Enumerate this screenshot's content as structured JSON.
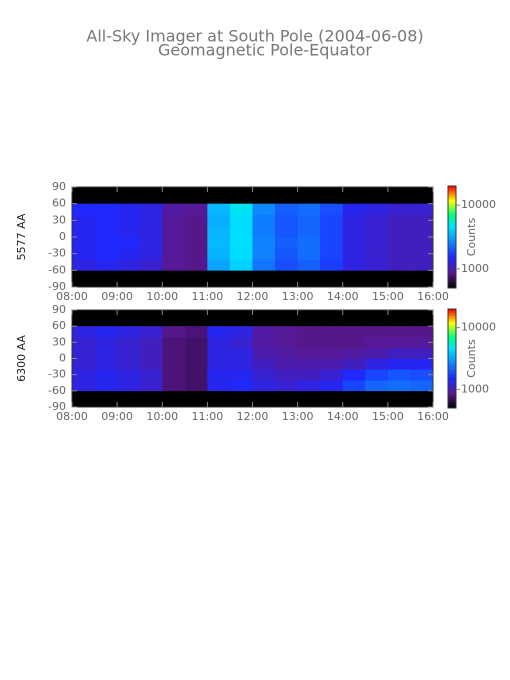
{
  "title": "All-Sky Imager at South Pole (2004-06-08)",
  "subtitle": "Geomagnetic Pole-Equator",
  "chart_data": [
    {
      "type": "heatmap",
      "ylabel": "5577 AA",
      "xlim": [
        8,
        16
      ],
      "xticks": [
        {
          "value": 8,
          "label": "08:00"
        },
        {
          "value": 9,
          "label": "09:00"
        },
        {
          "value": 10,
          "label": "10:00"
        },
        {
          "value": 11,
          "label": "11:00"
        },
        {
          "value": 12,
          "label": "12:00"
        },
        {
          "value": 13,
          "label": "13:00"
        },
        {
          "value": 14,
          "label": "14:00"
        },
        {
          "value": 15,
          "label": "15:00"
        },
        {
          "value": 16,
          "label": "16:00"
        }
      ],
      "ylim": [
        -90,
        90
      ],
      "yticks": [
        -90,
        -60,
        -30,
        0,
        30,
        60,
        90
      ],
      "bins": [
        8,
        8.5,
        9,
        9.5,
        10,
        10.5,
        11,
        11.5,
        12,
        12.5,
        13,
        13.5,
        14,
        14.5,
        15,
        15.5,
        16
      ],
      "ybins": [
        -60,
        -40,
        -20,
        0,
        20,
        40,
        60
      ],
      "values": [
        [
          1300,
          1400,
          1300,
          1200,
          900,
          850,
          3200,
          4200,
          2400,
          1900,
          2100,
          1700,
          1300,
          1200,
          1100,
          1100
        ],
        [
          1400,
          1500,
          1400,
          1300,
          900,
          850,
          3500,
          4500,
          2600,
          2000,
          2300,
          1800,
          1300,
          1200,
          1100,
          1100
        ],
        [
          1400,
          1500,
          1500,
          1300,
          900,
          850,
          3600,
          4600,
          2600,
          2100,
          2300,
          1800,
          1300,
          1200,
          1100,
          1100
        ],
        [
          1400,
          1500,
          1400,
          1300,
          900,
          850,
          3500,
          4500,
          2500,
          2000,
          2200,
          1800,
          1300,
          1200,
          1100,
          1100
        ],
        [
          1400,
          1500,
          1400,
          1300,
          900,
          850,
          3400,
          4500,
          2500,
          2000,
          2200,
          1800,
          1300,
          1200,
          1100,
          1100
        ],
        [
          1500,
          1500,
          1400,
          1300,
          950,
          900,
          3600,
          4800,
          2700,
          2100,
          2300,
          1900,
          1400,
          1300,
          1200,
          1200
        ]
      ],
      "colorbar": {
        "label": "Counts",
        "lim": [
          500,
          20000
        ],
        "ticks": [
          1000,
          10000
        ],
        "log": true
      }
    },
    {
      "type": "heatmap",
      "ylabel": "6300 AA",
      "xlim": [
        8,
        16
      ],
      "xticks": [
        {
          "value": 8,
          "label": "08:00"
        },
        {
          "value": 9,
          "label": "09:00"
        },
        {
          "value": 10,
          "label": "10:00"
        },
        {
          "value": 11,
          "label": "11:00"
        },
        {
          "value": 12,
          "label": "12:00"
        },
        {
          "value": 13,
          "label": "13:00"
        },
        {
          "value": 14,
          "label": "14:00"
        },
        {
          "value": 15,
          "label": "15:00"
        },
        {
          "value": 16,
          "label": "16:00"
        }
      ],
      "ylim": [
        -90,
        90
      ],
      "yticks": [
        -90,
        -60,
        -30,
        0,
        30,
        60,
        90
      ],
      "bins": [
        8,
        8.5,
        9,
        9.5,
        10,
        10.5,
        11,
        11.5,
        12,
        12.5,
        13,
        13.5,
        14,
        14.5,
        15,
        15.5,
        16
      ],
      "ybins": [
        -60,
        -40,
        -20,
        0,
        20,
        40,
        60
      ],
      "values": [
        [
          1300,
          1400,
          1300,
          1200,
          800,
          750,
          1400,
          1500,
          1300,
          1200,
          1300,
          1400,
          1800,
          2200,
          2300,
          2200
        ],
        [
          1300,
          1400,
          1300,
          1200,
          800,
          750,
          1400,
          1400,
          1200,
          1100,
          1100,
          1200,
          1500,
          1800,
          2000,
          1900
        ],
        [
          1200,
          1300,
          1200,
          1100,
          800,
          750,
          1300,
          1300,
          1100,
          1000,
          1000,
          1000,
          1100,
          1300,
          1400,
          1400
        ],
        [
          1200,
          1300,
          1200,
          1100,
          800,
          750,
          1300,
          1300,
          1000,
          950,
          900,
          900,
          950,
          1000,
          1100,
          1100
        ],
        [
          1200,
          1300,
          1200,
          1100,
          800,
          750,
          1300,
          1200,
          950,
          900,
          850,
          850,
          850,
          900,
          900,
          900
        ],
        [
          1300,
          1400,
          1300,
          1200,
          850,
          800,
          1400,
          1300,
          950,
          900,
          850,
          850,
          850,
          850,
          850,
          850
        ]
      ],
      "colorbar": {
        "label": "Counts",
        "lim": [
          500,
          20000
        ],
        "ticks": [
          1000,
          10000
        ],
        "log": true
      }
    }
  ],
  "colormap": [
    [
      0,
      "#000000"
    ],
    [
      0.15,
      "#5a1890"
    ],
    [
      0.3,
      "#1e28ff"
    ],
    [
      0.6,
      "#00e0ff"
    ],
    [
      0.72,
      "#00ff80"
    ],
    [
      0.86,
      "#ffff00"
    ],
    [
      1,
      "#ff0000"
    ]
  ],
  "no_data_color": "#000000"
}
